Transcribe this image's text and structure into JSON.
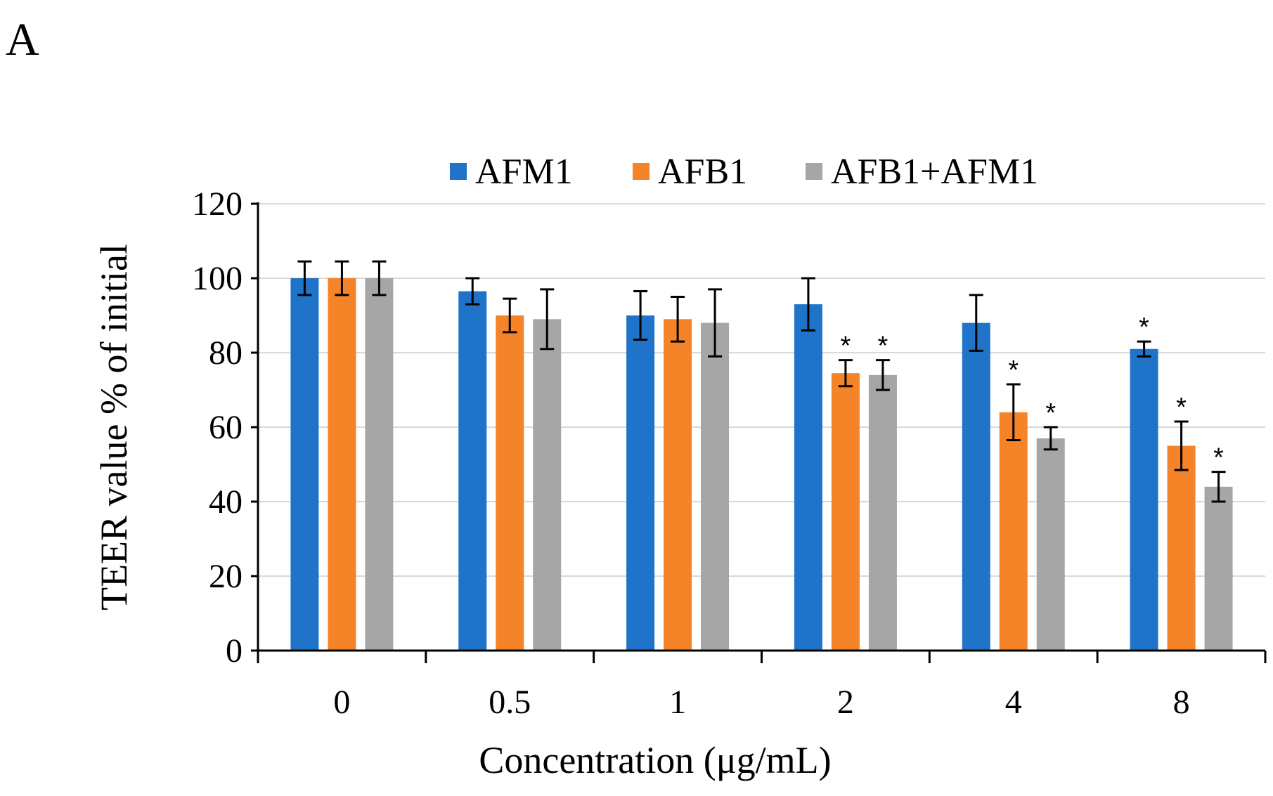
{
  "panel_label": "A",
  "chart_data": {
    "type": "bar",
    "title": "",
    "xlabel": "Concentration  (μg/mL)",
    "ylabel": "TEER value % of initial",
    "ylim": [
      0,
      120
    ],
    "yticks": [
      0,
      20,
      40,
      60,
      80,
      100,
      120
    ],
    "grid": true,
    "legend_position": "top",
    "categories": [
      "0",
      "0.5",
      "1",
      "2",
      "4",
      "8"
    ],
    "series": [
      {
        "name": "AFM1",
        "color": "#1f73c9",
        "values": [
          100,
          96.5,
          90,
          93,
          88,
          81
        ],
        "errors": [
          4.5,
          3.5,
          6.5,
          7,
          7.5,
          2
        ],
        "significant": [
          false,
          false,
          false,
          false,
          false,
          true
        ]
      },
      {
        "name": "AFB1",
        "color": "#f58327",
        "values": [
          100,
          90,
          89,
          74.5,
          64,
          55
        ],
        "errors": [
          4.5,
          4.5,
          6,
          3.5,
          7.5,
          6.5
        ],
        "significant": [
          false,
          false,
          false,
          true,
          true,
          true
        ]
      },
      {
        "name": "AFB1+AFM1",
        "color": "#a6a6a6",
        "values": [
          100,
          89,
          88,
          74,
          57,
          44
        ],
        "errors": [
          4.5,
          8,
          9,
          4,
          3,
          4
        ],
        "significant": [
          false,
          false,
          false,
          true,
          true,
          true
        ]
      }
    ],
    "annotation_symbol": "*"
  }
}
